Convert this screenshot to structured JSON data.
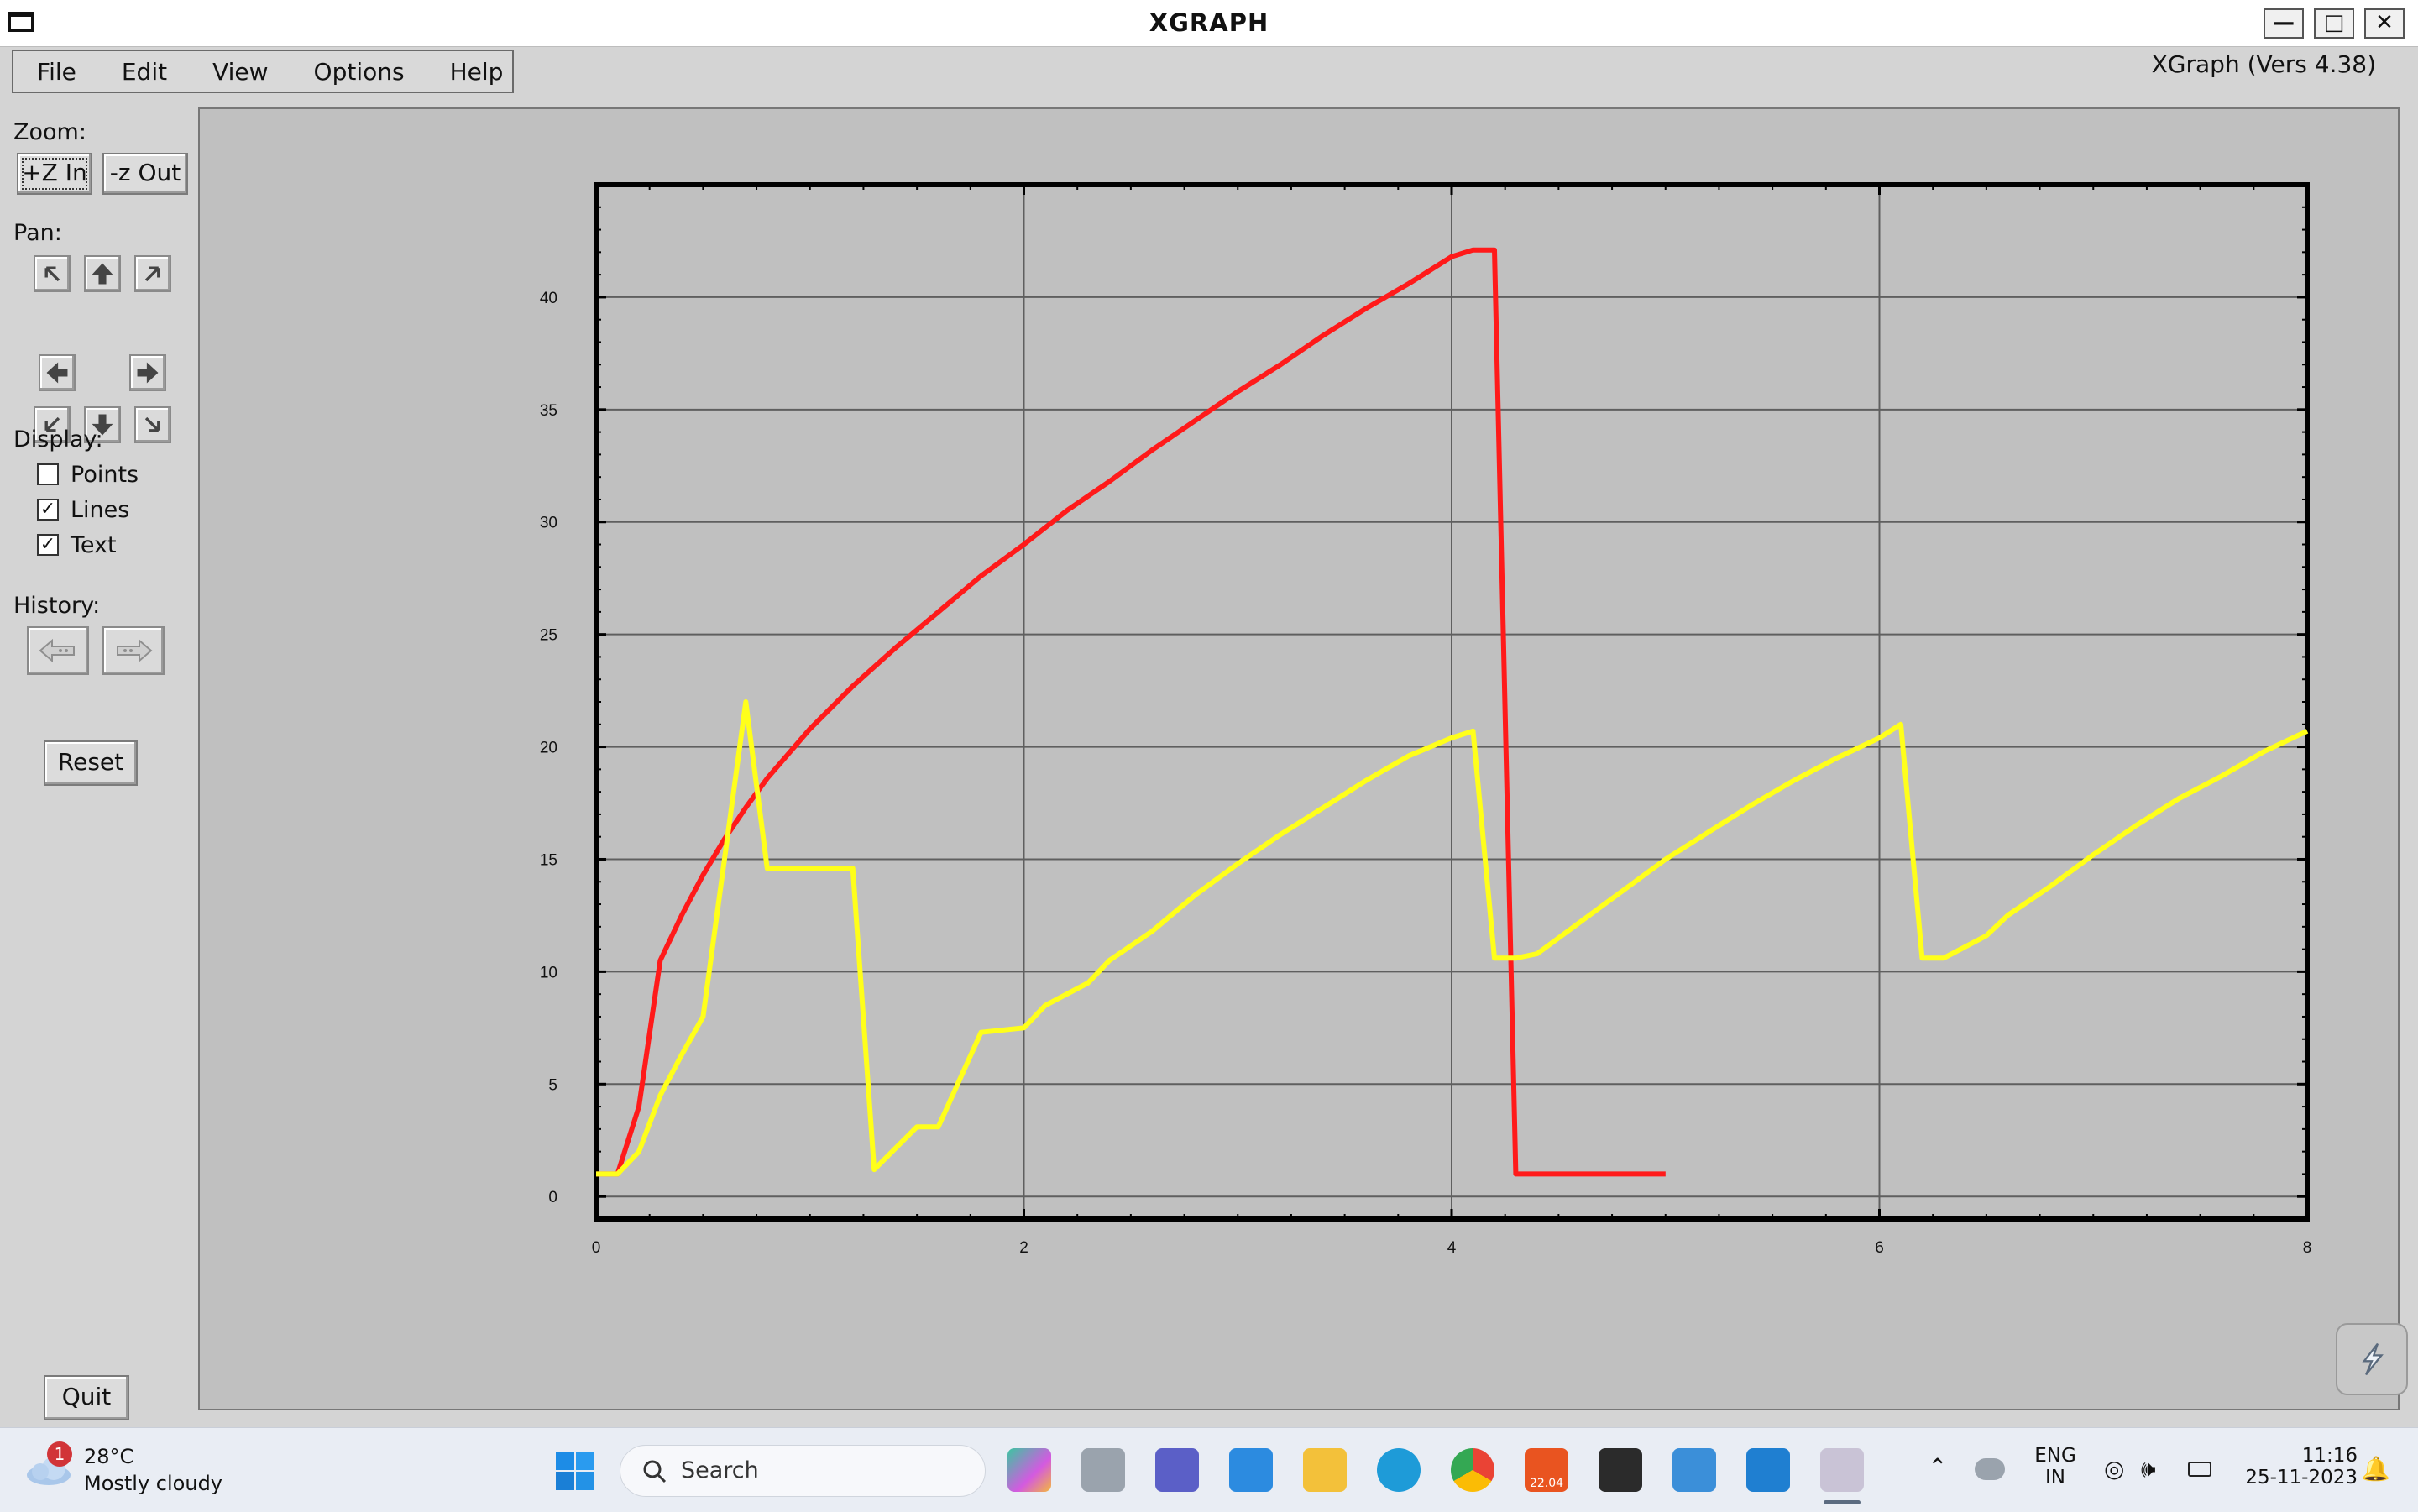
{
  "window": {
    "title": "XGRAPH",
    "controls": [
      "minimize-icon",
      "maximize-icon",
      "close-icon"
    ]
  },
  "menubar": {
    "items": [
      "File",
      "Edit",
      "View",
      "Options",
      "Help"
    ]
  },
  "version_label": "XGraph (Vers 4.38)",
  "panel": {
    "zoom_label": "Zoom:",
    "zoom_in": "+Z In",
    "zoom_out": "-z Out",
    "pan_label": "Pan:",
    "pan_icons": [
      "arrow-up-left-icon",
      "arrow-up-icon",
      "arrow-up-right-icon",
      "arrow-left-icon",
      "arrow-right-icon",
      "arrow-down-left-icon",
      "arrow-down-icon",
      "arrow-down-right-icon"
    ],
    "display_label": "Display:",
    "display_options": [
      {
        "label": "Points",
        "checked": false
      },
      {
        "label": "Lines",
        "checked": true
      },
      {
        "label": "Text",
        "checked": true
      }
    ],
    "history_label": "History:",
    "history_icons": [
      "history-back-icon",
      "history-forward-icon"
    ],
    "reset": "Reset",
    "quit": "Quit"
  },
  "chart_data": {
    "type": "line",
    "title": "",
    "xlabel": "",
    "ylabel": "",
    "xlim": [
      0,
      8
    ],
    "ylim": [
      -1,
      45
    ],
    "x_ticks": [
      "0",
      "2",
      "4",
      "6",
      "8"
    ],
    "y_ticks": [
      "0",
      "5",
      "10",
      "15",
      "20",
      "25",
      "30",
      "35",
      "40"
    ],
    "grid": true,
    "series": [
      {
        "color": "#ff1a1a",
        "points": [
          [
            0,
            1
          ],
          [
            0.1,
            1
          ],
          [
            0.2,
            4
          ],
          [
            0.3,
            10.5
          ],
          [
            0.4,
            12.5
          ],
          [
            0.5,
            14.3
          ],
          [
            0.6,
            15.9
          ],
          [
            0.7,
            17.3
          ],
          [
            0.8,
            18.6
          ],
          [
            1.0,
            20.8
          ],
          [
            1.2,
            22.7
          ],
          [
            1.4,
            24.4
          ],
          [
            1.6,
            26.0
          ],
          [
            1.8,
            27.6
          ],
          [
            2.0,
            29.0
          ],
          [
            2.2,
            30.5
          ],
          [
            2.4,
            31.8
          ],
          [
            2.6,
            33.2
          ],
          [
            2.8,
            34.5
          ],
          [
            3.0,
            35.8
          ],
          [
            3.2,
            37.0
          ],
          [
            3.4,
            38.3
          ],
          [
            3.6,
            39.5
          ],
          [
            3.8,
            40.6
          ],
          [
            4.0,
            41.8
          ],
          [
            4.1,
            42.1
          ],
          [
            4.2,
            42.1
          ],
          [
            4.3,
            1
          ],
          [
            5.0,
            1
          ]
        ]
      },
      {
        "color": "#ffff1a",
        "points": [
          [
            0,
            1
          ],
          [
            0.1,
            1
          ],
          [
            0.2,
            2
          ],
          [
            0.3,
            4.5
          ],
          [
            0.4,
            6.3
          ],
          [
            0.5,
            8
          ],
          [
            0.6,
            15
          ],
          [
            0.7,
            22
          ],
          [
            0.8,
            14.6
          ],
          [
            1.2,
            14.6
          ],
          [
            1.3,
            1.2
          ],
          [
            1.5,
            3.1
          ],
          [
            1.6,
            3.1
          ],
          [
            1.8,
            7.3
          ],
          [
            2.0,
            7.5
          ],
          [
            2.1,
            8.5
          ],
          [
            2.3,
            9.5
          ],
          [
            2.4,
            10.5
          ],
          [
            2.6,
            11.8
          ],
          [
            2.8,
            13.4
          ],
          [
            3.0,
            14.8
          ],
          [
            3.2,
            16.1
          ],
          [
            3.4,
            17.3
          ],
          [
            3.6,
            18.5
          ],
          [
            3.8,
            19.6
          ],
          [
            4.0,
            20.4
          ],
          [
            4.1,
            20.7
          ],
          [
            4.2,
            10.6
          ],
          [
            4.3,
            10.6
          ],
          [
            4.4,
            10.8
          ],
          [
            4.6,
            12.2
          ],
          [
            4.8,
            13.6
          ],
          [
            5.0,
            15
          ],
          [
            5.2,
            16.2
          ],
          [
            5.4,
            17.4
          ],
          [
            5.6,
            18.5
          ],
          [
            5.8,
            19.5
          ],
          [
            6.0,
            20.4
          ],
          [
            6.1,
            21
          ],
          [
            6.2,
            10.6
          ],
          [
            6.3,
            10.6
          ],
          [
            6.5,
            11.6
          ],
          [
            6.6,
            12.5
          ],
          [
            6.8,
            13.8
          ],
          [
            7.0,
            15.2
          ],
          [
            7.2,
            16.5
          ],
          [
            7.4,
            17.7
          ],
          [
            7.6,
            18.7
          ],
          [
            7.8,
            19.8
          ],
          [
            8.0,
            20.7
          ]
        ]
      }
    ]
  },
  "taskbar": {
    "weather_badge": "1",
    "weather_temp": "28°C",
    "weather_desc": "Mostly cloudy",
    "search_label": "Search",
    "apps": [
      "start-icon",
      "copilot-icon",
      "task-view-icon",
      "teams-icon",
      "store-icon",
      "file-explorer-icon",
      "edge-icon",
      "chrome-icon",
      "ubuntu-icon",
      "terminal-icon",
      "notepad-icon",
      "vscode-icon",
      "xgraph-icon"
    ],
    "ubuntu_label": "22.04",
    "lang_line1": "ENG",
    "lang_line2": "IN",
    "time": "11:16",
    "date": "25-11-2023"
  }
}
